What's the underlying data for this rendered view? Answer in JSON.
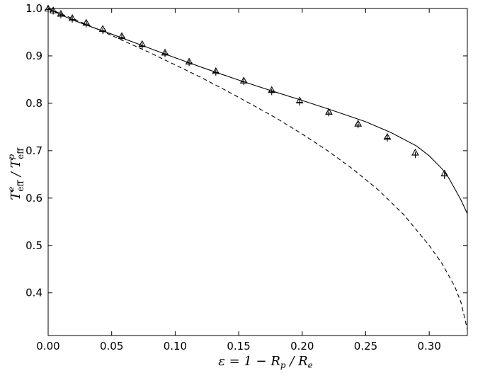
{
  "chart_data": {
    "type": "line",
    "title": "",
    "xlabel": "ε = 1 − R_p / R_e",
    "ylabel": "T^e_eff / T^p_eff",
    "xlim": [
      0.0,
      0.33
    ],
    "ylim": [
      0.31,
      1.0
    ],
    "xticks": [
      0.0,
      0.05,
      0.1,
      0.15,
      0.2,
      0.25,
      0.3
    ],
    "xtick_labels": [
      "0.00",
      "0.05",
      "0.10",
      "0.15",
      "0.20",
      "0.25",
      "0.30"
    ],
    "yticks": [
      0.4,
      0.5,
      0.6,
      0.7,
      0.8,
      0.9,
      1.0
    ],
    "ytick_labels": [
      "0.4",
      "0.5",
      "0.6",
      "0.7",
      "0.8",
      "0.9",
      "1.0"
    ],
    "grid": false,
    "legend": "none",
    "series": [
      {
        "style": "solid-line",
        "x": [
          0.0,
          0.01,
          0.02,
          0.03,
          0.05,
          0.075,
          0.1,
          0.125,
          0.15,
          0.175,
          0.2,
          0.225,
          0.25,
          0.27,
          0.29,
          0.3,
          0.31,
          0.315,
          0.32,
          0.325,
          0.33
        ],
        "y": [
          1.0,
          0.987,
          0.975,
          0.965,
          0.946,
          0.921,
          0.896,
          0.872,
          0.849,
          0.827,
          0.806,
          0.784,
          0.761,
          0.738,
          0.71,
          0.689,
          0.662,
          0.644,
          0.62,
          0.596,
          0.567
        ]
      },
      {
        "style": "dashed-line",
        "x": [
          0.0,
          0.02,
          0.04,
          0.06,
          0.08,
          0.1,
          0.12,
          0.14,
          0.16,
          0.18,
          0.2,
          0.22,
          0.24,
          0.26,
          0.28,
          0.3,
          0.31,
          0.32,
          0.325,
          0.33
        ],
        "y": [
          1.0,
          0.978,
          0.955,
          0.931,
          0.907,
          0.881,
          0.855,
          0.827,
          0.798,
          0.768,
          0.735,
          0.7,
          0.661,
          0.617,
          0.565,
          0.5,
          0.462,
          0.414,
          0.38,
          0.323
        ]
      },
      {
        "style": "plus-markers",
        "x": [
          0.0,
          0.004,
          0.01,
          0.019,
          0.03,
          0.043,
          0.058,
          0.074,
          0.092,
          0.111,
          0.132,
          0.154,
          0.176,
          0.198,
          0.221,
          0.244,
          0.267,
          0.289,
          0.312
        ],
        "y": [
          0.998,
          0.994,
          0.986,
          0.977,
          0.967,
          0.953,
          0.939,
          0.921,
          0.904,
          0.885,
          0.865,
          0.845,
          0.824,
          0.802,
          0.779,
          0.754,
          0.726,
          0.691,
          0.647
        ]
      },
      {
        "style": "triangle-markers",
        "x": [
          0.0,
          0.004,
          0.01,
          0.019,
          0.03,
          0.043,
          0.058,
          0.074,
          0.092,
          0.111,
          0.132,
          0.154,
          0.176,
          0.198,
          0.221,
          0.244,
          0.267,
          0.289,
          0.312
        ],
        "y": [
          1.0,
          0.996,
          0.989,
          0.98,
          0.97,
          0.957,
          0.942,
          0.925,
          0.907,
          0.888,
          0.868,
          0.848,
          0.828,
          0.806,
          0.782,
          0.757,
          0.729,
          0.696,
          0.652
        ]
      }
    ]
  }
}
